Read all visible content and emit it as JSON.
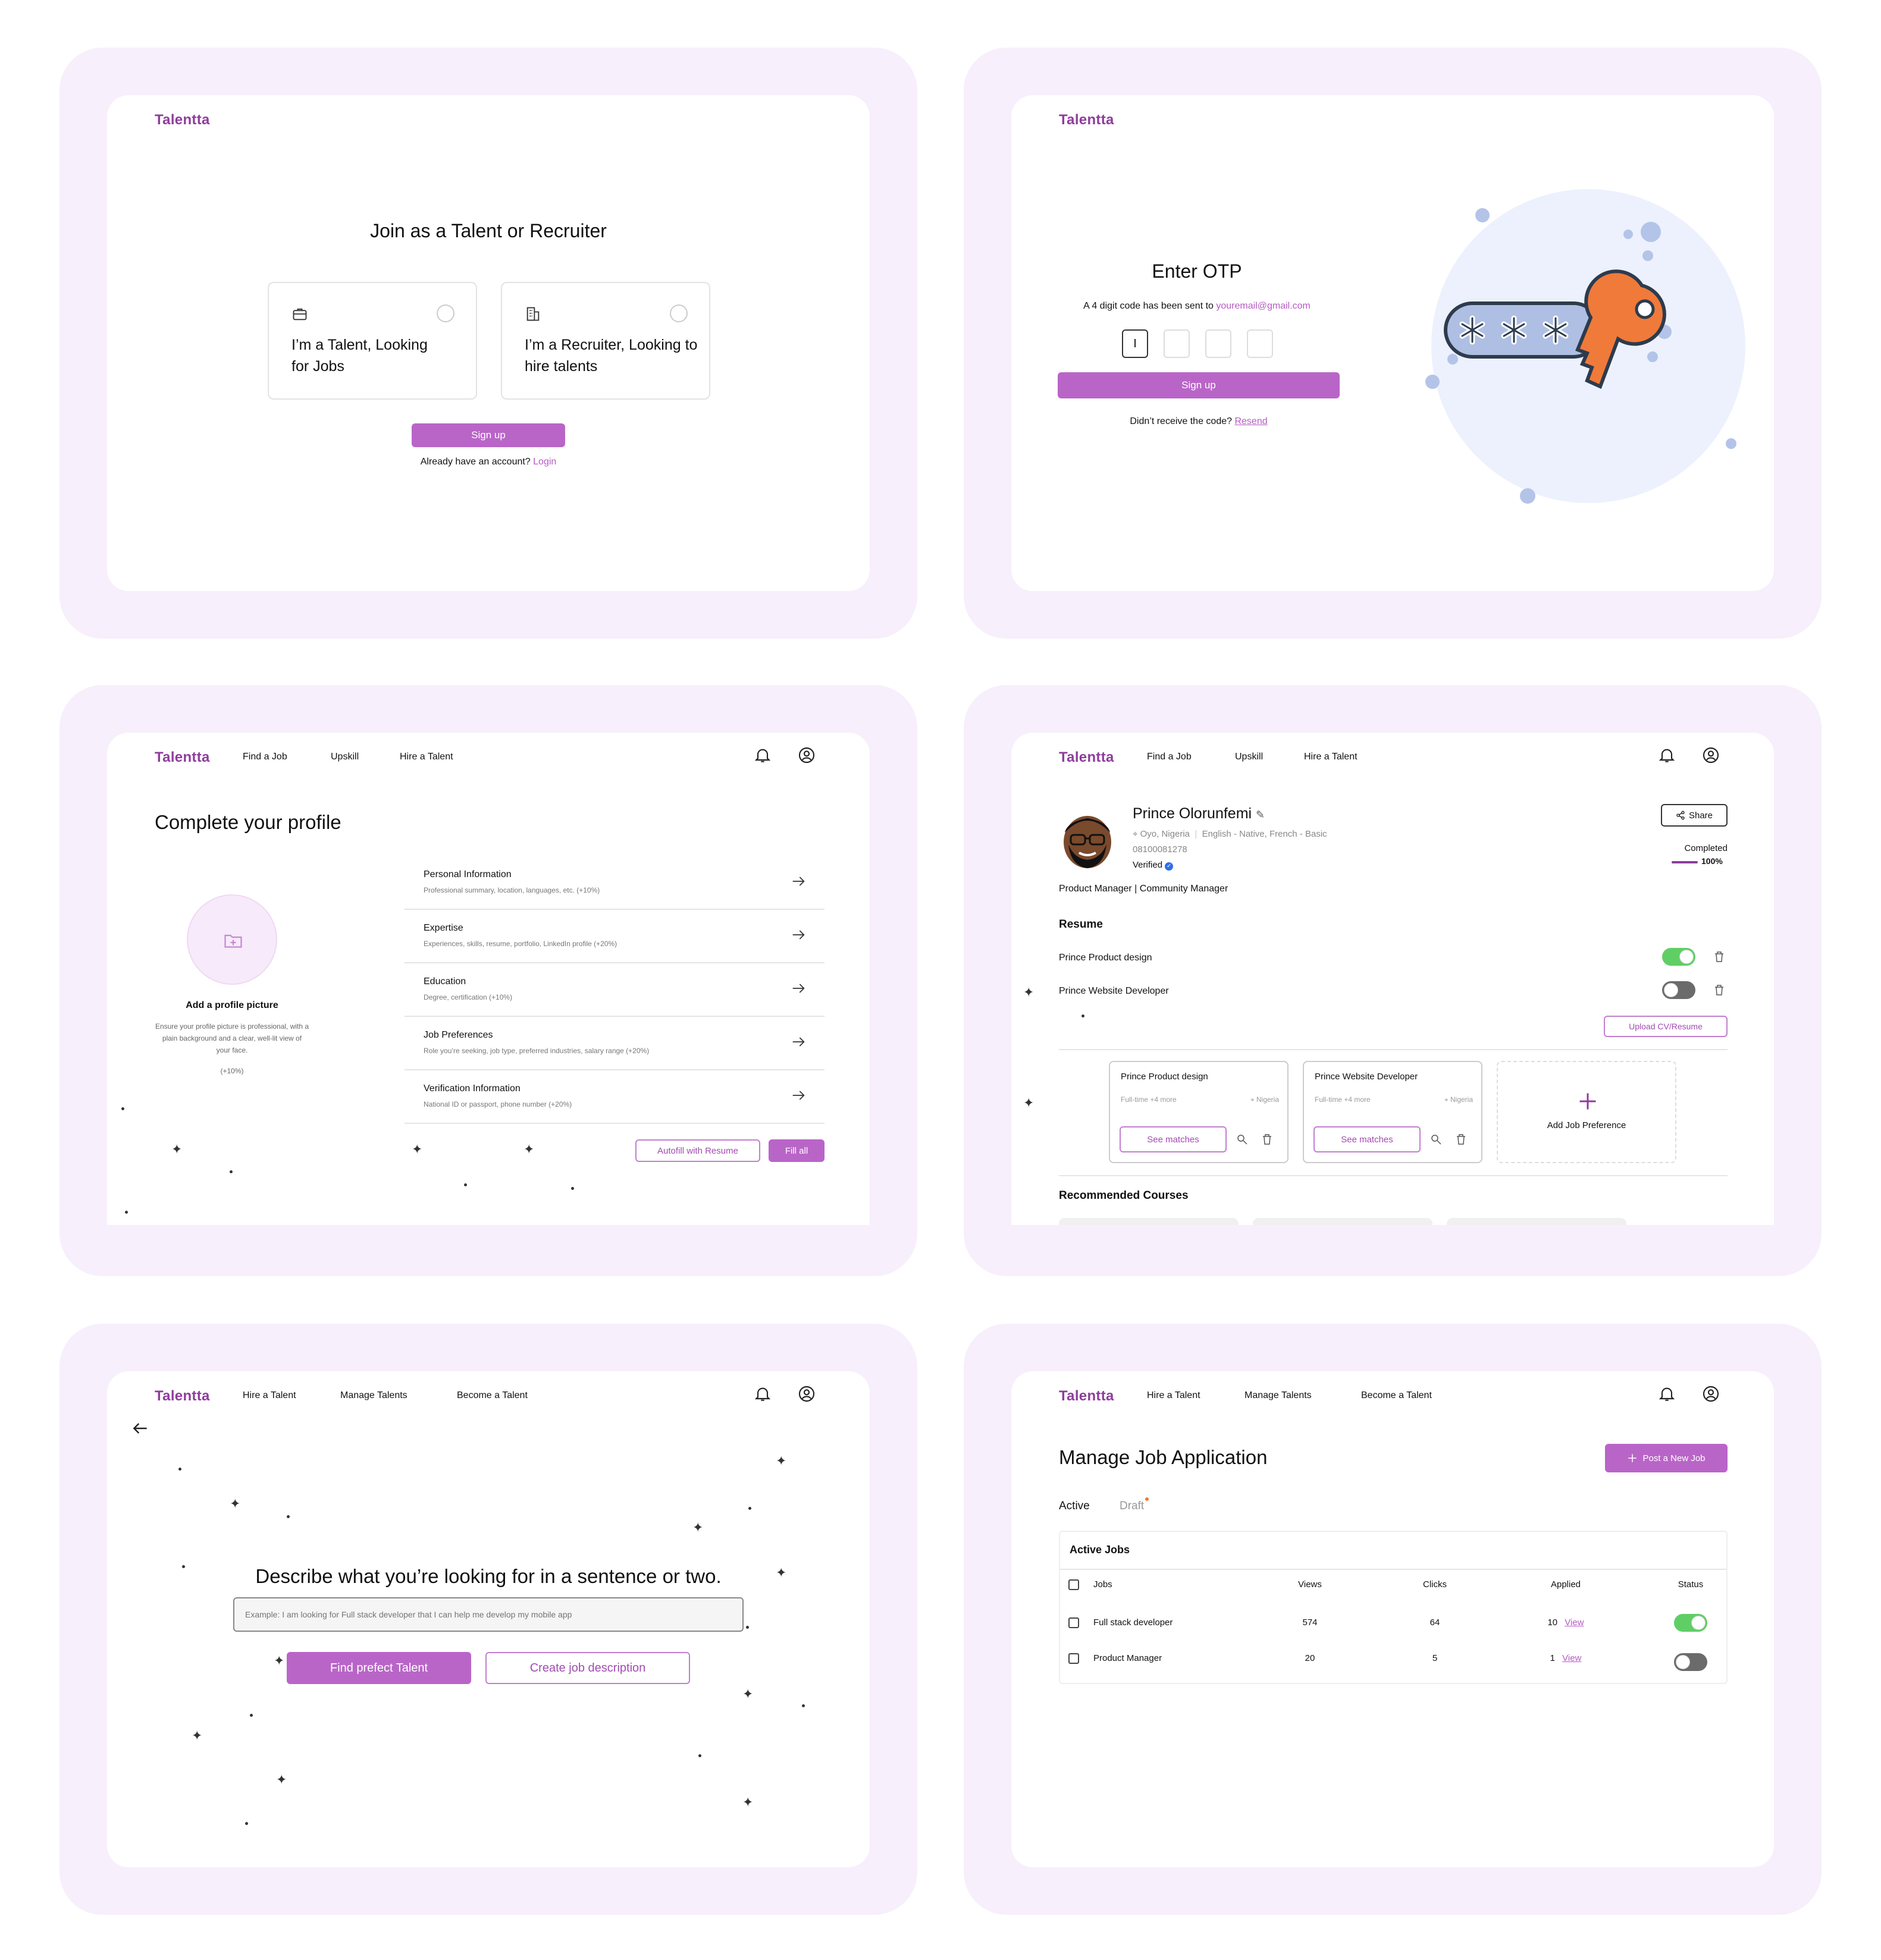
{
  "brand": "Talentta",
  "panel1": {
    "title": "Join as a Talent or Recruiter",
    "option_talent": "I’m a Talent, Looking for Jobs",
    "option_recruiter": "I’m a Recruiter, Looking to hire talents",
    "signup": "Sign up",
    "already": "Already have an account?",
    "login": "Login"
  },
  "panel2": {
    "title": "Enter OTP",
    "desc": "A 4 digit code has been sent to",
    "email": "youremail@gmail.com",
    "otp_first": "I",
    "signup": "Sign up",
    "didnt": "Didn’t receive the code?",
    "resend": "Resend"
  },
  "nav_talent": {
    "find_job": "Find a Job",
    "upskill": "Upskill",
    "hire": "Hire a Talent"
  },
  "nav_recruiter": {
    "hire": "Hire a Talent",
    "manage": "Manage Talents",
    "become": "Become a Talent"
  },
  "panel3": {
    "title": "Complete your profile",
    "add_picture": "Add a profile picture",
    "picture_desc": "Ensure your profile picture is professional, with a plain background and a clear, well-lit view of your face.",
    "picture_pct": "(+10%)",
    "sections": [
      {
        "title": "Personal Information",
        "desc": "Professional summary, location, languages, etc. (+10%)"
      },
      {
        "title": "Expertise",
        "desc": "Experiences, skills, resume, portfolio, LinkedIn profile (+20%)"
      },
      {
        "title": "Education",
        "desc": "Degree, certification (+10%)"
      },
      {
        "title": "Job Preferences",
        "desc": "Role you’re seeking, job type, preferred industries, salary range (+20%)"
      },
      {
        "title": "Verification Information",
        "desc": "National ID or passport, phone number (+20%)"
      }
    ],
    "autofill": "Autofill with Resume",
    "fill_all": "Fill all"
  },
  "panel4": {
    "name": "Prince Olorunfemi",
    "location": "Oyo, Nigeria",
    "languages": "English - Native, French - Basic",
    "phone": "08100081278",
    "verified": "Verified",
    "roles": "Product Manager | Community Manager",
    "share": "Share",
    "completed": "Completed",
    "completed_pct": "100%",
    "completion": 1.0,
    "resume_heading": "Resume",
    "resumes": [
      {
        "name": "Prince Product design",
        "on": true
      },
      {
        "name": "Prince Website Developer",
        "on": false
      }
    ],
    "upload": "Upload CV/Resume",
    "prefs": [
      {
        "title": "Prince Product design",
        "type": "Full-time +4 more",
        "loc": "Nigeria",
        "btn": "See matches"
      },
      {
        "title": "Prince Website Developer",
        "type": "Full-time +4 more",
        "loc": "Nigeria",
        "btn": "See matches"
      }
    ],
    "add_pref": "Add Job Preference",
    "courses": "Recommended Courses"
  },
  "panel5": {
    "heading": "Describe what you’re looking for in a sentence or two.",
    "placeholder": "Example: I am looking for Full stack developer that I can help me develop my mobile app",
    "find": "Find prefect Talent",
    "create": "Create job description"
  },
  "panel6": {
    "title": "Manage Job Application",
    "post": "Post a New Job",
    "tab_active": "Active",
    "tab_draft": "Draft",
    "table_title": "Active Jobs",
    "cols": [
      "Jobs",
      "Views",
      "Clicks",
      "Applied",
      "Status"
    ],
    "rows": [
      {
        "job": "Full stack developer",
        "views": "574",
        "clicks": "64",
        "applied": "10",
        "view": "View",
        "on": true
      },
      {
        "job": "Product Manager",
        "views": "20",
        "clicks": "5",
        "applied": "1",
        "view": "View",
        "on": false
      }
    ]
  },
  "colors": {
    "accent": "#b965c8",
    "brand": "#8e3d9c",
    "panel": "#f7effb",
    "toggle_on": "#5fcf65",
    "toggle_off": "#6b6b6b",
    "key": "#f07a3a",
    "bubble": "#ecf1fd"
  },
  "icons": [
    "briefcase-icon",
    "building-icon",
    "bell-icon",
    "user-circle-icon",
    "arrow-right-icon",
    "folder-plus-icon",
    "share-icon",
    "trash-icon",
    "pin-icon",
    "search-doc-icon",
    "plus-icon",
    "arrow-left-icon",
    "sparkle-icon",
    "key-icon",
    "verified-icon",
    "pencil-icon"
  ]
}
